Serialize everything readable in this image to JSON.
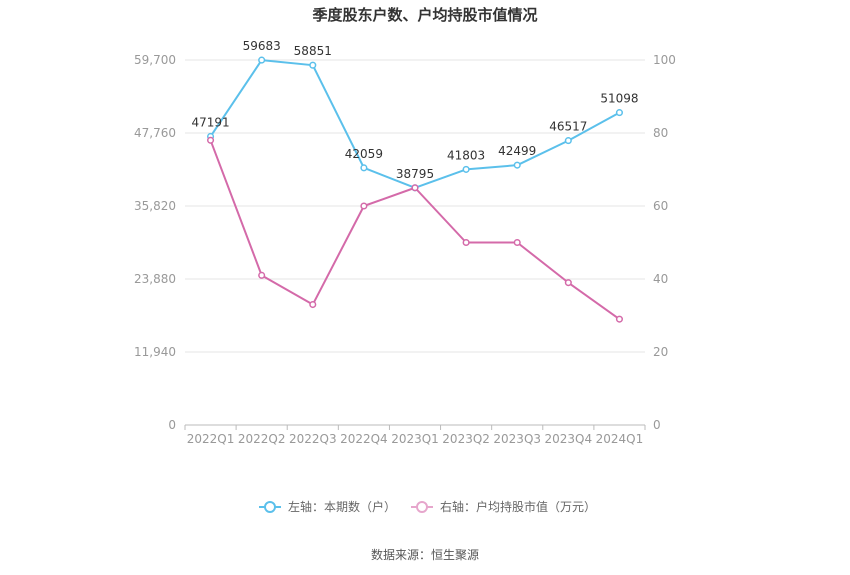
{
  "title": "季度股东户数、户均持股市值情况",
  "source_label": "数据来源：恒生聚源",
  "chart_data": {
    "type": "line",
    "categories": [
      "2022Q1",
      "2022Q2",
      "2022Q3",
      "2022Q4",
      "2023Q1",
      "2023Q2",
      "2023Q3",
      "2023Q4",
      "2024Q1"
    ],
    "left_axis": {
      "min": 0,
      "max": 59700,
      "ticks": [
        "0",
        "11,940",
        "23,880",
        "35,820",
        "47,760",
        "59,700"
      ]
    },
    "right_axis": {
      "min": 0,
      "max": 100,
      "ticks": [
        "0",
        "20",
        "40",
        "60",
        "80",
        "100"
      ]
    },
    "grid": true,
    "legend_position": "bottom",
    "series": [
      {
        "name": "左轴：本期数（户）",
        "axis": "left",
        "color": "#5bc0eb",
        "values": [
          47191,
          59683,
          58851,
          42059,
          38795,
          41803,
          42499,
          46517,
          51098
        ],
        "labels": [
          "47191",
          "59683",
          "58851",
          "42059",
          "38795",
          "41803",
          "42499",
          "46517",
          "51098"
        ]
      },
      {
        "name": "右轴：户均持股市值（万元）",
        "axis": "right",
        "color": "#d46aa9",
        "values": [
          78,
          41,
          33,
          60,
          65,
          50,
          50,
          39,
          29
        ]
      }
    ]
  }
}
